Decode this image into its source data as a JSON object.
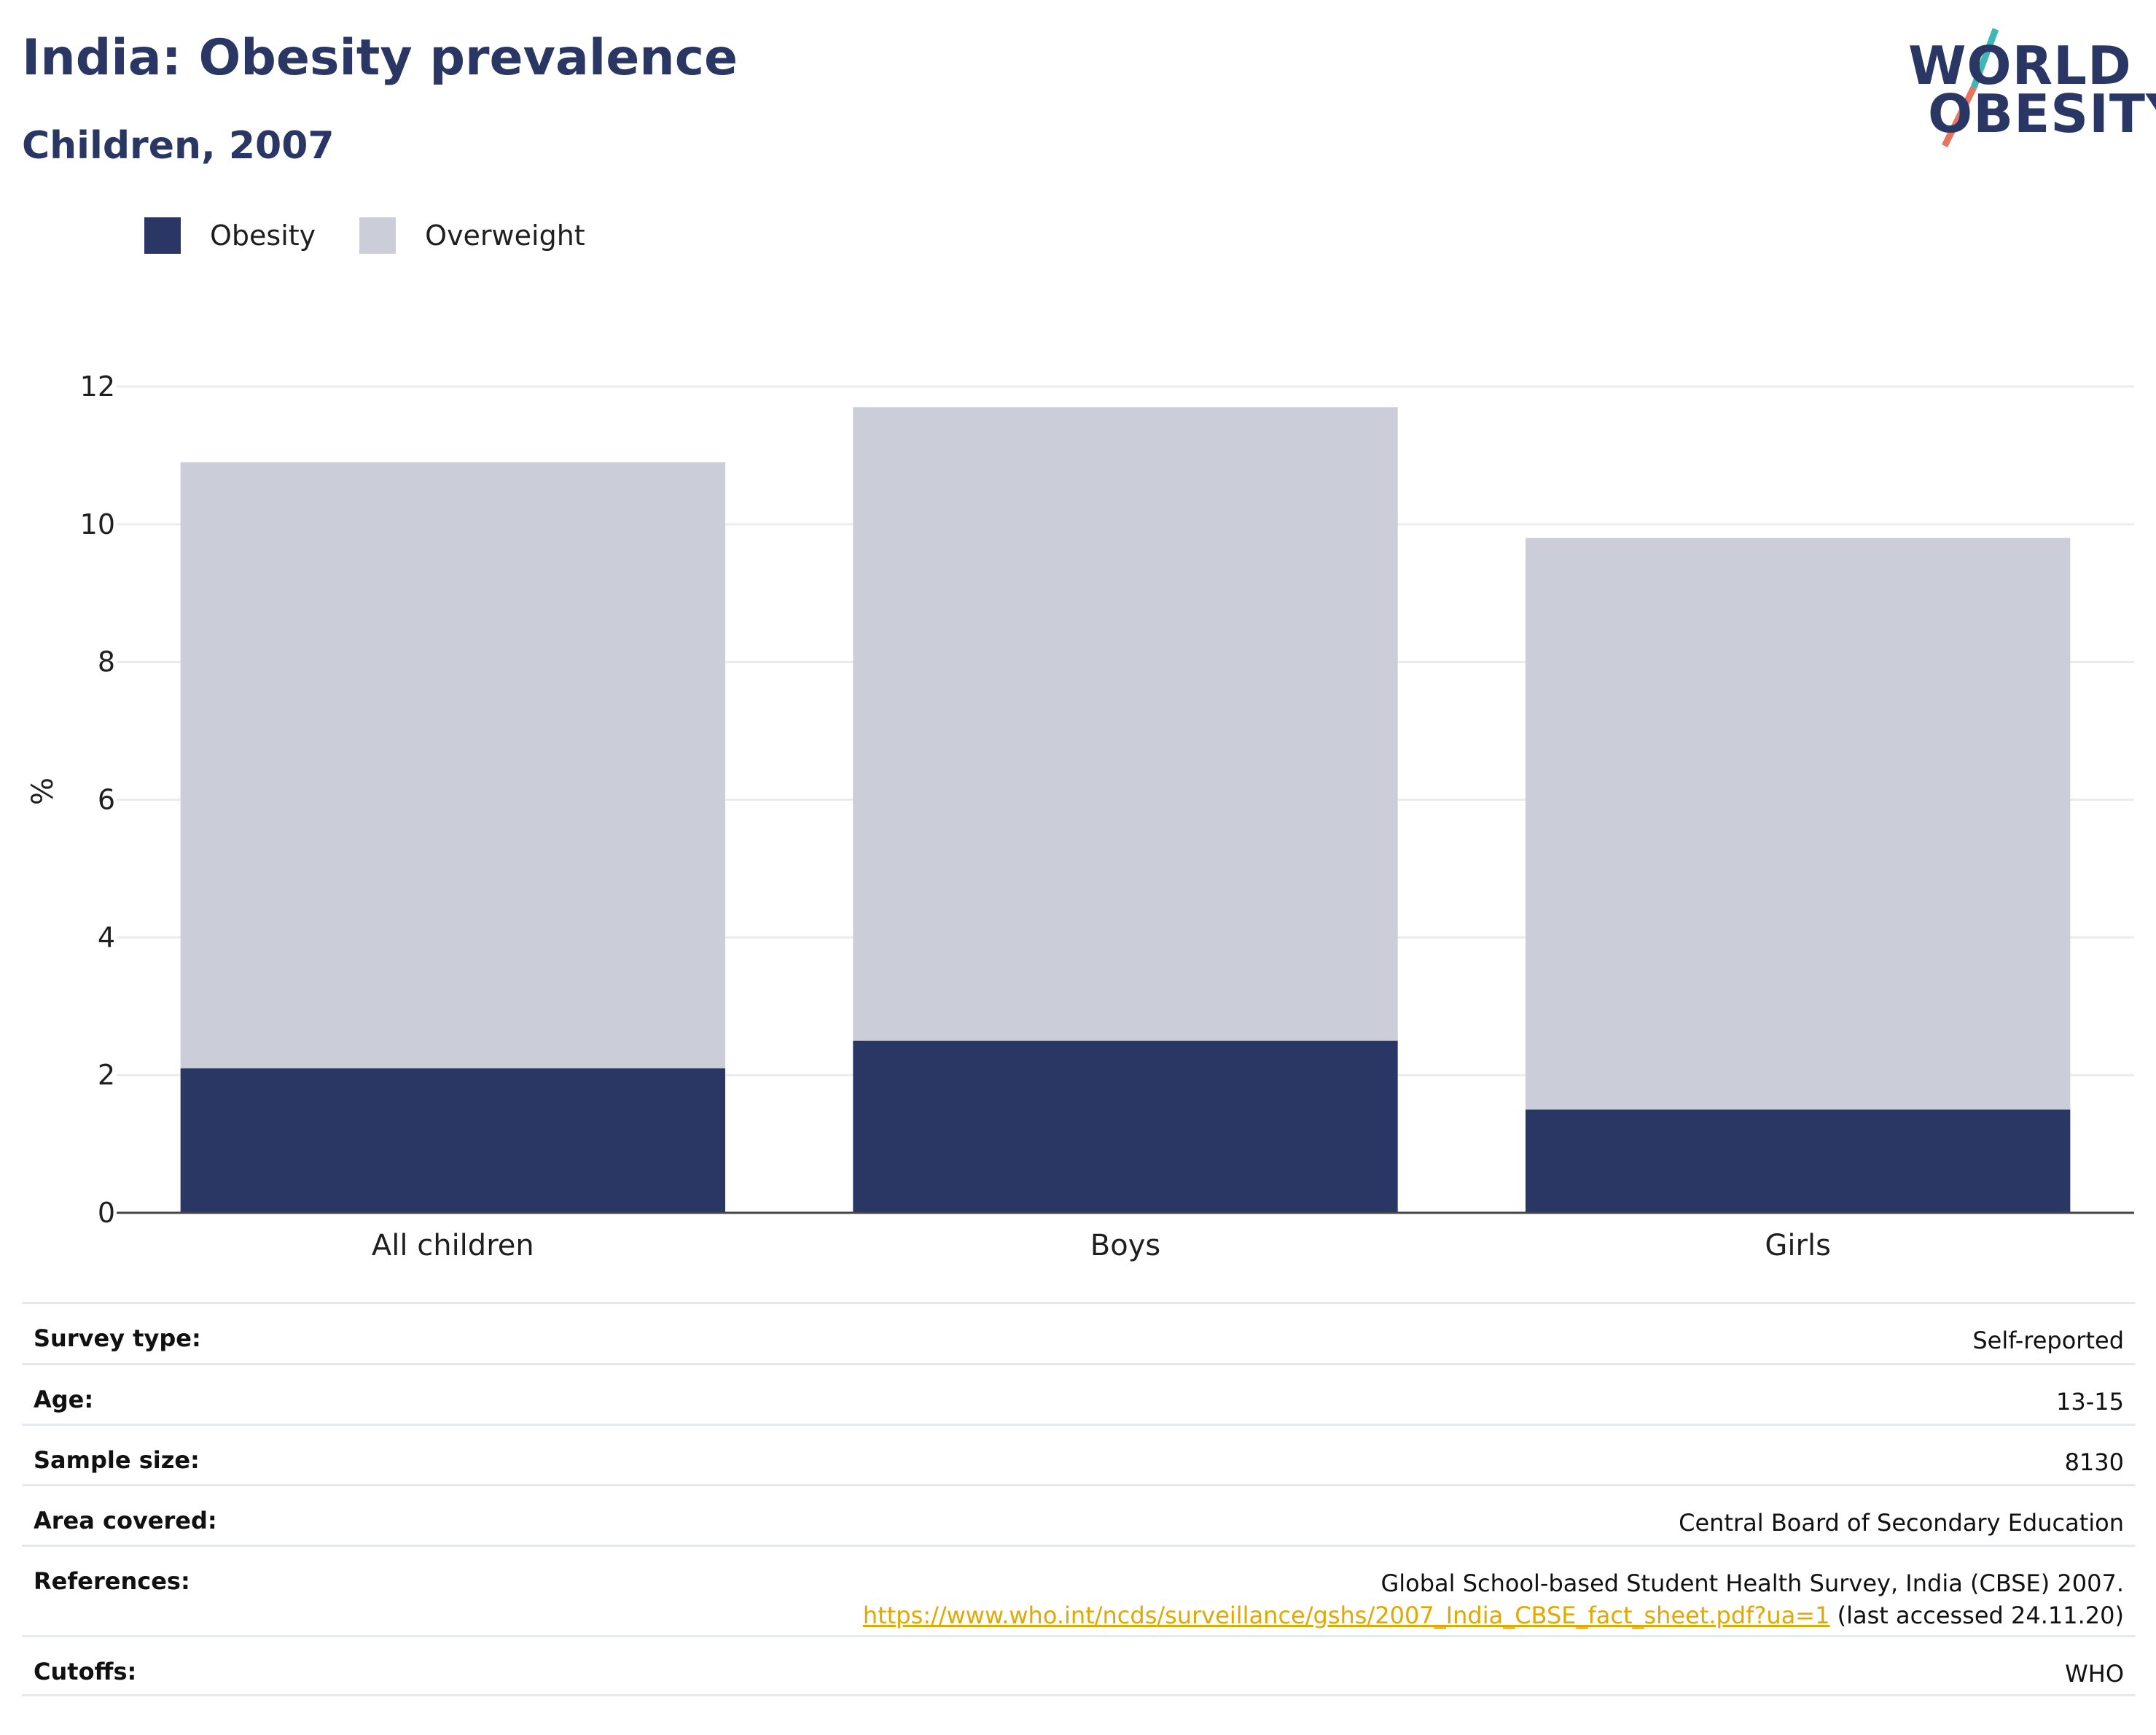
{
  "header": {
    "title": "India: Obesity prevalence",
    "subtitle": "Children, 2007"
  },
  "logo": {
    "line1": "WORLD",
    "line2": "OBESITY",
    "brand_colors": [
      "#2a3764",
      "#e8735f",
      "#3fb8b5"
    ]
  },
  "legend": [
    {
      "label": "Obesity",
      "color": "#2a3764"
    },
    {
      "label": "Overweight",
      "color": "#cbcdd8"
    }
  ],
  "chart_data": {
    "type": "bar",
    "stacked": true,
    "categories": [
      "All children",
      "Boys",
      "Girls"
    ],
    "series": [
      {
        "name": "Obesity",
        "color": "#2a3764",
        "values": [
          2.1,
          2.5,
          1.5
        ]
      },
      {
        "name": "Overweight",
        "color": "#cbcdd8",
        "values": [
          8.8,
          9.2,
          8.3
        ]
      }
    ],
    "ylabel": "%",
    "ylim": [
      0,
      12
    ],
    "yticks": [
      "0",
      "2",
      "4",
      "6",
      "8",
      "10",
      "12"
    ],
    "grid": true,
    "legend_position": "top-left"
  },
  "info": [
    {
      "key": "Survey type:",
      "value": "Self-reported"
    },
    {
      "key": "Age:",
      "value": "13-15"
    },
    {
      "key": "Sample size:",
      "value": "8130"
    },
    {
      "key": "Area covered:",
      "value": "Central Board of Secondary Education"
    },
    {
      "key": "References:",
      "value": "Global School-based Student Health Survey, India (CBSE) 2007.",
      "link": "https://www.who.int/ncds/surveillance/gshs/2007_India_CBSE_fact_sheet.pdf?ua=1",
      "link_suffix": " (last accessed 24.11.20)"
    },
    {
      "key": "Cutoffs:",
      "value": "WHO"
    }
  ]
}
